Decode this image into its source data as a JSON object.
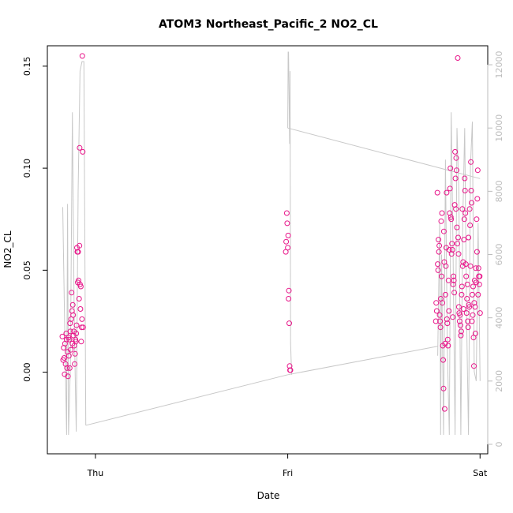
{
  "chart_data": {
    "type": "scatter",
    "title": "ATOM3 Northeast_Pacific_2 NO2_CL",
    "xlabel": "Date",
    "ylabel": "NO2_CL",
    "x_ticks": [
      "Thu",
      "Fri",
      "Sat"
    ],
    "x_range_days": [
      -0.25,
      2.04
    ],
    "y_left": {
      "range": [
        -0.04,
        0.16
      ],
      "ticks": [
        0.0,
        0.05,
        0.1,
        0.15
      ],
      "tick_labels": [
        "0.00",
        "0.05",
        "0.10",
        "0.15"
      ]
    },
    "y_right": {
      "range": [
        -300,
        12600
      ],
      "ticks": [
        0,
        2000,
        4000,
        6000,
        8000,
        10000,
        12000
      ],
      "tick_labels": [
        "0",
        "2000",
        "4000",
        "6000",
        "8000",
        "10000",
        "12000"
      ]
    },
    "colors": {
      "points": "#e8168a",
      "altitude_line": "#c8c8c8",
      "axis": "#000000",
      "right_axis": "#bdbdbd"
    },
    "series": [
      {
        "marker": "open-circle",
        "axis": "left",
        "points": [
          [
            -0.172,
            0.0175
          ],
          [
            -0.168,
            0.006
          ],
          [
            -0.165,
            0.012
          ],
          [
            -0.162,
            0.007
          ],
          [
            -0.16,
            -0.001
          ],
          [
            -0.158,
            0.014
          ],
          [
            -0.155,
            0.004
          ],
          [
            -0.152,
            0.019
          ],
          [
            -0.15,
            0.016
          ],
          [
            -0.148,
            0.002
          ],
          [
            -0.145,
            0.01
          ],
          [
            -0.143,
            -0.002
          ],
          [
            -0.14,
            0.017
          ],
          [
            -0.138,
            0.008
          ],
          [
            -0.136,
            0.016
          ],
          [
            -0.134,
            0.002
          ],
          [
            -0.132,
            0.024
          ],
          [
            -0.13,
            0.02
          ],
          [
            -0.128,
            0.011
          ],
          [
            -0.126,
            0.026
          ],
          [
            -0.124,
            0.039
          ],
          [
            -0.122,
            0.03
          ],
          [
            -0.12,
            0.014
          ],
          [
            -0.118,
            0.033
          ],
          [
            -0.116,
            0.028
          ],
          [
            -0.114,
            0.018
          ],
          [
            -0.112,
            0.02
          ],
          [
            -0.11,
            0.013
          ],
          [
            -0.108,
            0.004
          ],
          [
            -0.106,
            0.009
          ],
          [
            -0.104,
            0.016
          ],
          [
            -0.102,
            0.015
          ],
          [
            -0.1,
            0.019
          ],
          [
            -0.098,
            0.023
          ],
          [
            -0.096,
            0.061
          ],
          [
            -0.094,
            0.059
          ],
          [
            -0.092,
            0.044
          ],
          [
            -0.09,
            0.059
          ],
          [
            -0.088,
            0.045
          ],
          [
            -0.085,
            0.036
          ],
          [
            -0.083,
            0.062
          ],
          [
            -0.082,
            0.11
          ],
          [
            -0.08,
            0.043
          ],
          [
            -0.078,
            0.031
          ],
          [
            -0.076,
            0.042
          ],
          [
            -0.074,
            0.015
          ],
          [
            -0.072,
            0.022
          ],
          [
            -0.07,
            0.026
          ],
          [
            -0.068,
            0.155
          ],
          [
            -0.066,
            0.108
          ],
          [
            -0.064,
            0.022
          ],
          [
            0.99,
            0.059
          ],
          [
            0.992,
            0.064
          ],
          [
            0.995,
            0.078
          ],
          [
            0.997,
            0.073
          ],
          [
            1.0,
            0.061
          ],
          [
            1.002,
            0.067
          ],
          [
            1.004,
            0.036
          ],
          [
            1.006,
            0.04
          ],
          [
            1.008,
            0.024
          ],
          [
            1.01,
            0.003
          ],
          [
            1.012,
            0.001
          ],
          [
            1.014,
            0.001
          ],
          [
            1.77,
            0.025
          ],
          [
            1.772,
            0.034
          ],
          [
            1.775,
            0.03
          ],
          [
            1.778,
            0.088
          ],
          [
            1.78,
            0.053
          ],
          [
            1.782,
            0.05
          ],
          [
            1.784,
            0.065
          ],
          [
            1.786,
            0.059
          ],
          [
            1.788,
            0.062
          ],
          [
            1.79,
            0.028
          ],
          [
            1.792,
            0.025
          ],
          [
            1.794,
            0.022
          ],
          [
            1.796,
            0.036
          ],
          [
            1.798,
            0.074
          ],
          [
            1.8,
            0.047
          ],
          [
            1.802,
            0.078
          ],
          [
            1.804,
            0.034
          ],
          [
            1.806,
            0.013
          ],
          [
            1.808,
            0.006
          ],
          [
            1.81,
            -0.008
          ],
          [
            1.812,
            0.069
          ],
          [
            1.814,
            0.054
          ],
          [
            1.816,
            -0.018
          ],
          [
            1.818,
            0.014
          ],
          [
            1.82,
            0.038
          ],
          [
            1.822,
            0.052
          ],
          [
            1.824,
            0.061
          ],
          [
            1.826,
            0.088
          ],
          [
            1.828,
            0.026
          ],
          [
            1.83,
            0.024
          ],
          [
            1.832,
            0.016
          ],
          [
            1.834,
            0.013
          ],
          [
            1.836,
            0.045
          ],
          [
            1.838,
            0.03
          ],
          [
            1.84,
            0.06
          ],
          [
            1.842,
            0.078
          ],
          [
            1.844,
            0.09
          ],
          [
            1.846,
            0.1
          ],
          [
            1.848,
            0.076
          ],
          [
            1.85,
            0.075
          ],
          [
            1.852,
            0.058
          ],
          [
            1.854,
            0.063
          ],
          [
            1.856,
            0.06
          ],
          [
            1.858,
            0.027
          ],
          [
            1.86,
            0.043
          ],
          [
            1.862,
            0.047
          ],
          [
            1.864,
            0.045
          ],
          [
            1.866,
            0.039
          ],
          [
            1.868,
            0.082
          ],
          [
            1.87,
            0.108
          ],
          [
            1.872,
            0.095
          ],
          [
            1.874,
            0.08
          ],
          [
            1.876,
            0.105
          ],
          [
            1.878,
            0.099
          ],
          [
            1.88,
            0.071
          ],
          [
            1.882,
            0.063
          ],
          [
            1.884,
            0.154
          ],
          [
            1.886,
            0.066
          ],
          [
            1.888,
            0.058
          ],
          [
            1.89,
            0.032
          ],
          [
            1.892,
            0.029
          ],
          [
            1.894,
            0.025
          ],
          [
            1.896,
            0.028
          ],
          [
            1.898,
            0.023
          ],
          [
            1.9,
            0.018
          ],
          [
            1.902,
            0.02
          ],
          [
            1.904,
            0.038
          ],
          [
            1.906,
            0.042
          ],
          [
            1.908,
            0.08
          ],
          [
            1.91,
            0.052
          ],
          [
            1.912,
            0.054
          ],
          [
            1.914,
            0.031
          ],
          [
            1.916,
            0.065
          ],
          [
            1.918,
            0.075
          ],
          [
            1.92,
            0.095
          ],
          [
            1.922,
            0.089
          ],
          [
            1.924,
            0.078
          ],
          [
            1.926,
            0.053
          ],
          [
            1.928,
            0.047
          ],
          [
            1.93,
            0.029
          ],
          [
            1.932,
            0.036
          ],
          [
            1.934,
            0.043
          ],
          [
            1.936,
            0.025
          ],
          [
            1.938,
            0.022
          ],
          [
            1.94,
            0.066
          ],
          [
            1.942,
            0.033
          ],
          [
            1.944,
            0.032
          ],
          [
            1.946,
            0.08
          ],
          [
            1.948,
            0.072
          ],
          [
            1.95,
            0.052
          ],
          [
            1.952,
            0.103
          ],
          [
            1.954,
            0.089
          ],
          [
            1.956,
            0.083
          ],
          [
            1.958,
            0.025
          ],
          [
            1.96,
            0.038
          ],
          [
            1.962,
            0.028
          ],
          [
            1.964,
            0.042
          ],
          [
            1.966,
            0.017
          ],
          [
            1.968,
            0.003
          ],
          [
            1.97,
            0.034
          ],
          [
            1.972,
            0.045
          ],
          [
            1.974,
            0.032
          ],
          [
            1.976,
            0.019
          ],
          [
            1.978,
            0.051
          ],
          [
            1.98,
            0.044
          ],
          [
            1.982,
            0.075
          ],
          [
            1.984,
            0.059
          ],
          [
            1.986,
            0.085
          ],
          [
            1.988,
            0.099
          ],
          [
            1.99,
            0.038
          ],
          [
            1.992,
            0.051
          ],
          [
            1.994,
            0.047
          ],
          [
            1.996,
            0.043
          ],
          [
            1.998,
            0.047
          ],
          [
            2.0,
            0.029
          ]
        ]
      },
      {
        "marker": "line",
        "axis": "right",
        "points": [
          [
            -0.17,
            7500
          ],
          [
            -0.16,
            3800
          ],
          [
            -0.15,
            300
          ],
          [
            -0.145,
            7600
          ],
          [
            -0.14,
            300
          ],
          [
            -0.13,
            2500
          ],
          [
            -0.12,
            10500
          ],
          [
            -0.11,
            3800
          ],
          [
            -0.1,
            400
          ],
          [
            -0.09,
            8000
          ],
          [
            -0.08,
            11800
          ],
          [
            -0.07,
            12100
          ],
          [
            -0.06,
            12100
          ],
          [
            -0.05,
            600
          ],
          [
            1.0,
            10000
          ],
          [
            1.002,
            12400
          ],
          [
            1.004,
            12400
          ],
          [
            1.01,
            9500
          ],
          [
            1.012,
            11800
          ],
          [
            1.015,
            3200
          ],
          [
            1.02,
            2200
          ],
          [
            1.78,
            2800
          ],
          [
            1.79,
            7000
          ],
          [
            1.795,
            300
          ],
          [
            1.8,
            6000
          ],
          [
            1.81,
            300
          ],
          [
            1.82,
            9000
          ],
          [
            1.83,
            3000
          ],
          [
            1.84,
            300
          ],
          [
            1.85,
            10500
          ],
          [
            1.86,
            6000
          ],
          [
            1.87,
            300
          ],
          [
            1.88,
            10000
          ],
          [
            1.89,
            8000
          ],
          [
            1.9,
            300
          ],
          [
            1.91,
            7000
          ],
          [
            1.92,
            10000
          ],
          [
            1.93,
            4000
          ],
          [
            1.94,
            300
          ],
          [
            1.95,
            8800
          ],
          [
            1.96,
            10200
          ],
          [
            1.97,
            2300
          ],
          [
            1.98,
            2000
          ],
          [
            1.99,
            7000
          ],
          [
            2.0,
            2000
          ]
        ]
      }
    ],
    "connector_segments": [
      [
        [
          -0.05,
          600
        ],
        [
          1.0,
          2200
        ]
      ],
      [
        [
          1.0,
          2200
        ],
        [
          1.78,
          3100
        ]
      ],
      [
        [
          1.0,
          10000
        ],
        [
          2.0,
          8400
        ]
      ]
    ]
  }
}
